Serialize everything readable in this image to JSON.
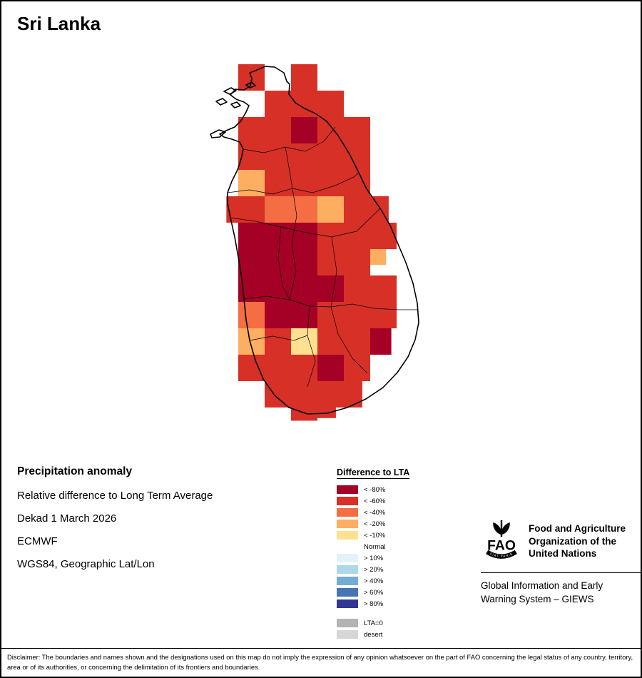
{
  "page": {
    "title": "Sri Lanka",
    "disclaimer": "Disclaimer: The boundaries and names shown and the designations used on this map do not imply the expression of any opinion whatsoever on the part of FAO concerning the legal status of any country, territory, area or of its authorities, or concerning the delimitation of its frontiers and boundaries."
  },
  "info": {
    "heading": "Precipitation anomaly",
    "lines": [
      "Relative difference to Long Term Average",
      "Dekad 1 March 2026",
      "ECMWF",
      "WGS84, Geographic Lat/Lon"
    ]
  },
  "legend": {
    "title": "Difference to LTA",
    "entries": [
      {
        "label": "< -80%",
        "color": "#a50026"
      },
      {
        "label": "< -60%",
        "color": "#d73027"
      },
      {
        "label": "< -40%",
        "color": "#f46d43"
      },
      {
        "label": "< -20%",
        "color": "#fdae61"
      },
      {
        "label": "< -10%",
        "color": "#fee090"
      },
      {
        "label": "Normal",
        "color": "#ffffff"
      },
      {
        "label": "> 10%",
        "color": "#e0f3f8"
      },
      {
        "label": "> 20%",
        "color": "#abd9e9"
      },
      {
        "label": "> 40%",
        "color": "#74add1"
      },
      {
        "label": "> 60%",
        "color": "#4575b4"
      },
      {
        "label": "> 80%",
        "color": "#313695"
      }
    ],
    "extra_entries": [
      {
        "label": "LTA=0",
        "color": "#b3b3b3"
      },
      {
        "label": "desert",
        "color": "#d6d6d6"
      }
    ]
  },
  "org": {
    "logo_text": "FAO",
    "logo_motto": "FIAT PANIS",
    "name_lines": [
      "Food and Agriculture",
      "Organization of the",
      "United Nations"
    ],
    "subtitle_lines": [
      "Global Information and Early",
      "Warning System – GIEWS"
    ]
  },
  "chart_data": {
    "type": "heatmap",
    "title": "Precipitation anomaly — relative difference to Long Term Average, Dekad 1 March 2026, Sri Lanka (ECMWF)",
    "units": "% difference to LTA",
    "region": "Sri Lanka",
    "dekad": "1 March 2026",
    "source": "ECMWF",
    "projection": "WGS84, Geographic Lat/Lon",
    "levels": {
      "m80": {
        "label": "< -80%",
        "color": "#a50026"
      },
      "m60": {
        "label": "< -60%",
        "color": "#d73027"
      },
      "m40": {
        "label": "< -40%",
        "color": "#f46d43"
      },
      "m20": {
        "label": "< -20%",
        "color": "#fdae61"
      },
      "m10": {
        "label": "< -10%",
        "color": "#fee090"
      }
    },
    "cells": [
      {
        "c": 1,
        "r": 0,
        "v": "m60"
      },
      {
        "c": 3,
        "r": 0,
        "v": "m60"
      },
      {
        "c": 2,
        "r": 1,
        "v": "m60"
      },
      {
        "c": 3,
        "r": 1,
        "v": "m60"
      },
      {
        "c": 4,
        "r": 1,
        "v": "m60"
      },
      {
        "c": 1,
        "r": 2,
        "v": "m60"
      },
      {
        "c": 2,
        "r": 2,
        "v": "m60"
      },
      {
        "c": 3,
        "r": 2,
        "v": "m80"
      },
      {
        "c": 4,
        "r": 2,
        "v": "m60"
      },
      {
        "c": 5,
        "r": 2,
        "v": "m60"
      },
      {
        "c": 1,
        "r": 3,
        "v": "m60"
      },
      {
        "c": 2,
        "r": 3,
        "v": "m60"
      },
      {
        "c": 3,
        "r": 3,
        "v": "m60"
      },
      {
        "c": 4,
        "r": 3,
        "v": "m60"
      },
      {
        "c": 5,
        "r": 3,
        "v": "m60"
      },
      {
        "c": 1,
        "r": 4,
        "v": "m20"
      },
      {
        "c": 2,
        "r": 4,
        "v": "m60"
      },
      {
        "c": 3,
        "r": 4,
        "v": "m60"
      },
      {
        "c": 4,
        "r": 4,
        "v": "m60"
      },
      {
        "c": 5,
        "r": 4,
        "v": "m60"
      },
      {
        "c": 0.55,
        "r": 5,
        "v": "m60",
        "w": 0.45
      },
      {
        "c": 1,
        "r": 5,
        "v": "m60"
      },
      {
        "c": 2,
        "r": 5,
        "v": "m40"
      },
      {
        "c": 3,
        "r": 5,
        "v": "m40"
      },
      {
        "c": 4,
        "r": 5,
        "v": "m20"
      },
      {
        "c": 5,
        "r": 5,
        "v": "m60"
      },
      {
        "c": 6,
        "r": 5,
        "v": "m60",
        "w": 0.7
      },
      {
        "c": 1,
        "r": 6,
        "v": "m80"
      },
      {
        "c": 2,
        "r": 6,
        "v": "m80"
      },
      {
        "c": 3,
        "r": 6,
        "v": "m80"
      },
      {
        "c": 4,
        "r": 6,
        "v": "m60"
      },
      {
        "c": 5,
        "r": 6,
        "v": "m60"
      },
      {
        "c": 6,
        "r": 6,
        "v": "m60"
      },
      {
        "c": 1,
        "r": 7,
        "v": "m80"
      },
      {
        "c": 2,
        "r": 7,
        "v": "m80"
      },
      {
        "c": 3,
        "r": 7,
        "v": "m80"
      },
      {
        "c": 4,
        "r": 7,
        "v": "m60"
      },
      {
        "c": 5,
        "r": 7,
        "v": "m60"
      },
      {
        "c": 6,
        "r": 7,
        "v": "m20",
        "w": 0.6,
        "h": 0.6
      },
      {
        "c": 1,
        "r": 8,
        "v": "m80"
      },
      {
        "c": 2,
        "r": 8,
        "v": "m80"
      },
      {
        "c": 3,
        "r": 8,
        "v": "m80"
      },
      {
        "c": 4,
        "r": 8,
        "v": "m80"
      },
      {
        "c": 5,
        "r": 8,
        "v": "m60"
      },
      {
        "c": 6,
        "r": 8,
        "v": "m60"
      },
      {
        "c": 1,
        "r": 9,
        "v": "m40"
      },
      {
        "c": 2,
        "r": 9,
        "v": "m80"
      },
      {
        "c": 3,
        "r": 9,
        "v": "m80"
      },
      {
        "c": 4,
        "r": 9,
        "v": "m60"
      },
      {
        "c": 5,
        "r": 9,
        "v": "m60"
      },
      {
        "c": 6,
        "r": 9,
        "v": "m60"
      },
      {
        "c": 1,
        "r": 10,
        "v": "m20"
      },
      {
        "c": 2,
        "r": 10,
        "v": "m60"
      },
      {
        "c": 3,
        "r": 10,
        "v": "m10"
      },
      {
        "c": 4,
        "r": 10,
        "v": "m60"
      },
      {
        "c": 5,
        "r": 10,
        "v": "m60"
      },
      {
        "c": 6,
        "r": 10,
        "v": "m80",
        "w": 0.8
      },
      {
        "c": 1,
        "r": 11,
        "v": "m60"
      },
      {
        "c": 2,
        "r": 11,
        "v": "m60"
      },
      {
        "c": 3,
        "r": 11,
        "v": "m60"
      },
      {
        "c": 4,
        "r": 11,
        "v": "m80"
      },
      {
        "c": 5,
        "r": 11,
        "v": "m60"
      },
      {
        "c": 2,
        "r": 12,
        "v": "m60"
      },
      {
        "c": 3,
        "r": 12,
        "v": "m60"
      },
      {
        "c": 4,
        "r": 12,
        "v": "m60"
      },
      {
        "c": 5,
        "r": 12,
        "v": "m60",
        "w": 0.7
      },
      {
        "c": 3,
        "r": 13,
        "v": "m60",
        "h": 0.5
      },
      {
        "c": 4,
        "r": 13,
        "v": "m60",
        "w": 0.7,
        "h": 0.4
      }
    ]
  }
}
